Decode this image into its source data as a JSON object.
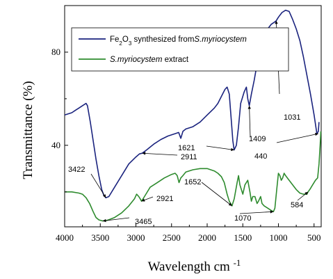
{
  "chart_data": {
    "type": "line",
    "xlabel": "Wavelength cm",
    "xlabel_superscript": "-1",
    "ylabel": "Transmittance (%)",
    "xlim": [
      4000,
      400
    ],
    "ylim": [
      5,
      100
    ],
    "x_ticks": [
      4000,
      3500,
      3000,
      2500,
      2000,
      1500,
      1000,
      500
    ],
    "y_ticks": [
      40,
      80
    ],
    "grid": false,
    "legend_position": "top-center",
    "colors": {
      "series1": "#1a237e",
      "series2": "#2e8b2e"
    },
    "series": [
      {
        "name": "Fe2O3 synthesized fromS.myriocystem",
        "legend_parts": [
          {
            "text": "Fe",
            "style": "normal"
          },
          {
            "text": "2",
            "style": "sub"
          },
          {
            "text": "O",
            "style": "normal"
          },
          {
            "text": "3",
            "style": "sub"
          },
          {
            "text": " synthesized from",
            "style": "normal"
          },
          {
            "text": "S.myriocystem",
            "style": "italic"
          }
        ],
        "points": [
          [
            4000,
            53
          ],
          [
            3900,
            54
          ],
          [
            3850,
            55
          ],
          [
            3800,
            56
          ],
          [
            3750,
            57
          ],
          [
            3700,
            58
          ],
          [
            3680,
            57
          ],
          [
            3640,
            50
          ],
          [
            3600,
            42
          ],
          [
            3560,
            34
          ],
          [
            3520,
            27
          ],
          [
            3480,
            21
          ],
          [
            3450,
            18.5
          ],
          [
            3422,
            17.5
          ],
          [
            3380,
            18
          ],
          [
            3300,
            22
          ],
          [
            3200,
            27
          ],
          [
            3100,
            32
          ],
          [
            3000,
            35
          ],
          [
            2950,
            36.3
          ],
          [
            2911,
            36.6
          ],
          [
            2850,
            38
          ],
          [
            2750,
            40.5
          ],
          [
            2650,
            42.5
          ],
          [
            2550,
            44
          ],
          [
            2450,
            45
          ],
          [
            2400,
            45.5
          ],
          [
            2370,
            43
          ],
          [
            2340,
            46
          ],
          [
            2300,
            47
          ],
          [
            2200,
            48
          ],
          [
            2100,
            50
          ],
          [
            2000,
            53
          ],
          [
            1900,
            56
          ],
          [
            1850,
            58
          ],
          [
            1800,
            61
          ],
          [
            1750,
            64
          ],
          [
            1720,
            65
          ],
          [
            1690,
            62
          ],
          [
            1660,
            50
          ],
          [
            1640,
            42
          ],
          [
            1621,
            38
          ],
          [
            1590,
            40
          ],
          [
            1560,
            48
          ],
          [
            1530,
            58
          ],
          [
            1480,
            63
          ],
          [
            1450,
            65
          ],
          [
            1430,
            60
          ],
          [
            1409,
            57
          ],
          [
            1380,
            62
          ],
          [
            1340,
            68
          ],
          [
            1300,
            75
          ],
          [
            1250,
            82
          ],
          [
            1200,
            87
          ],
          [
            1150,
            90
          ],
          [
            1100,
            92
          ],
          [
            1050,
            93
          ],
          [
            1031,
            93.5
          ],
          [
            1000,
            95
          ],
          [
            950,
            97
          ],
          [
            900,
            98
          ],
          [
            850,
            97.5
          ],
          [
            800,
            94
          ],
          [
            750,
            90
          ],
          [
            700,
            85
          ],
          [
            650,
            78
          ],
          [
            600,
            70
          ],
          [
            550,
            62
          ],
          [
            500,
            53
          ],
          [
            460,
            45
          ],
          [
            440,
            46
          ],
          [
            430,
            50
          ]
        ]
      },
      {
        "name": "S.myriocystem extract",
        "legend_parts": [
          {
            "text": "S.myriocystem",
            "style": "italic"
          },
          {
            "text": " extract",
            "style": "normal"
          }
        ],
        "points": [
          [
            4000,
            20
          ],
          [
            3900,
            20
          ],
          [
            3800,
            19.5
          ],
          [
            3750,
            19
          ],
          [
            3700,
            17.5
          ],
          [
            3650,
            15
          ],
          [
            3600,
            11.5
          ],
          [
            3560,
            9
          ],
          [
            3520,
            8
          ],
          [
            3465,
            7.5
          ],
          [
            3400,
            7.8
          ],
          [
            3300,
            9
          ],
          [
            3200,
            11
          ],
          [
            3100,
            14
          ],
          [
            3020,
            17
          ],
          [
            2990,
            19
          ],
          [
            2960,
            18
          ],
          [
            2940,
            17
          ],
          [
            2921,
            16
          ],
          [
            2880,
            18
          ],
          [
            2800,
            22
          ],
          [
            2700,
            24
          ],
          [
            2600,
            26
          ],
          [
            2500,
            27.5
          ],
          [
            2450,
            28
          ],
          [
            2420,
            27
          ],
          [
            2395,
            24
          ],
          [
            2370,
            26
          ],
          [
            2340,
            27
          ],
          [
            2300,
            28.5
          ],
          [
            2200,
            29.5
          ],
          [
            2100,
            30
          ],
          [
            2000,
            30
          ],
          [
            1900,
            29
          ],
          [
            1850,
            28
          ],
          [
            1800,
            26.5
          ],
          [
            1760,
            24
          ],
          [
            1720,
            19
          ],
          [
            1690,
            16
          ],
          [
            1652,
            14
          ],
          [
            1620,
            17
          ],
          [
            1580,
            24
          ],
          [
            1560,
            27
          ],
          [
            1540,
            23
          ],
          [
            1500,
            19
          ],
          [
            1470,
            23
          ],
          [
            1430,
            25
          ],
          [
            1400,
            20
          ],
          [
            1380,
            16
          ],
          [
            1360,
            18
          ],
          [
            1330,
            18
          ],
          [
            1300,
            15
          ],
          [
            1280,
            16
          ],
          [
            1250,
            18
          ],
          [
            1230,
            15
          ],
          [
            1200,
            14
          ],
          [
            1150,
            13
          ],
          [
            1100,
            12
          ],
          [
            1070,
            11.5
          ],
          [
            1050,
            13
          ],
          [
            1020,
            22
          ],
          [
            1000,
            28
          ],
          [
            980,
            27
          ],
          [
            960,
            25
          ],
          [
            940,
            26
          ],
          [
            920,
            28
          ],
          [
            900,
            27
          ],
          [
            850,
            25
          ],
          [
            800,
            23
          ],
          [
            750,
            21
          ],
          [
            700,
            19.5
          ],
          [
            650,
            19
          ],
          [
            600,
            19
          ],
          [
            584,
            20
          ],
          [
            560,
            21
          ],
          [
            520,
            23
          ],
          [
            480,
            25
          ],
          [
            450,
            26
          ],
          [
            430,
            32
          ],
          [
            415,
            40
          ],
          [
            405,
            46
          ]
        ]
      }
    ],
    "annotations": [
      {
        "text": "3422",
        "x": 3422,
        "y": 17.5,
        "series": 0
      },
      {
        "text": "2911",
        "x": 2911,
        "y": 36.6,
        "series": 0
      },
      {
        "text": "1621",
        "x": 1621,
        "y": 38,
        "series": 0
      },
      {
        "text": "1409",
        "x": 1409,
        "y": 57,
        "series": 0
      },
      {
        "text": "1031",
        "x": 1031,
        "y": 93.5,
        "series": 0
      },
      {
        "text": "440",
        "x": 440,
        "y": 45,
        "series": 0
      },
      {
        "text": "3465",
        "x": 3465,
        "y": 7.5,
        "series": 1
      },
      {
        "text": "2921",
        "x": 2921,
        "y": 16,
        "series": 1
      },
      {
        "text": "1652",
        "x": 1652,
        "y": 14,
        "series": 1
      },
      {
        "text": "1070",
        "x": 1070,
        "y": 11.5,
        "series": 1
      },
      {
        "text": "584",
        "x": 584,
        "y": 20,
        "series": 1
      }
    ]
  }
}
